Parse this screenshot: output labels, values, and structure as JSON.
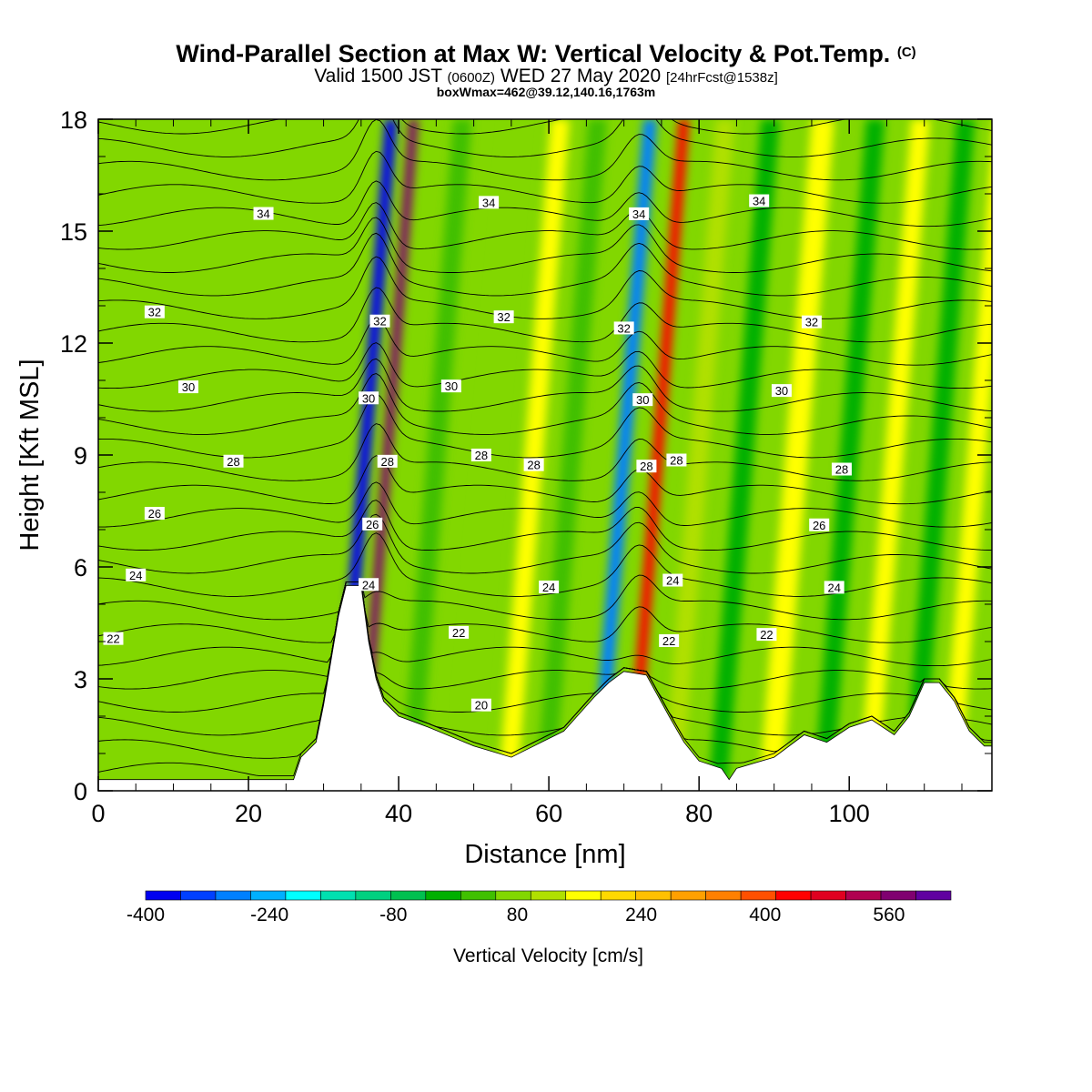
{
  "titles": {
    "main": "Wind-Parallel Section at Max W: Vertical Velocity & Pot.Temp.",
    "main_suffix": "(C)",
    "line2_a": "Valid 1500 JST",
    "line2_b": "(0600Z)",
    "line2_c": "WED 27 May 2020",
    "line2_d": "[24hrFcst@1538z]",
    "line3": "boxWmax=462@39.12,140.16,1763m"
  },
  "colors": {
    "background_field": "#82d700",
    "terrain": "#ffffff",
    "contour": "#000000",
    "colorbar": [
      "#0000f0",
      "#0040ff",
      "#0080ff",
      "#00b0ff",
      "#00ffff",
      "#00e0b0",
      "#00d080",
      "#00c050",
      "#00b000",
      "#40c000",
      "#82d700",
      "#b0e000",
      "#ffff00",
      "#ffd800",
      "#ffc000",
      "#ffa000",
      "#ff8000",
      "#ff5000",
      "#ff0000",
      "#e00020",
      "#b00050",
      "#800070",
      "#6000a0"
    ]
  },
  "chart_data": {
    "type": "heatmap",
    "title": "Wind-Parallel Section at Max W: Vertical Velocity & Pot.Temp.",
    "xlabel": "Distance [nm]",
    "ylabel": "Height [Kft MSL]",
    "xlim": [
      0,
      119
    ],
    "ylim": [
      0,
      18
    ],
    "x_ticks": [
      0,
      20,
      40,
      60,
      80,
      100
    ],
    "y_ticks": [
      0,
      3,
      6,
      9,
      12,
      15,
      18
    ],
    "colorbar": {
      "label": "Vertical Velocity [cm/s]",
      "tick_labels": [
        "-400",
        "-240",
        "-80",
        "80",
        "240",
        "400",
        "560"
      ],
      "range": [
        -400,
        640
      ],
      "step": 40
    },
    "vertical_velocity_bands": [
      {
        "x": 35.5,
        "w": 1.6,
        "value": -420
      },
      {
        "x": 38.5,
        "w": 1.2,
        "value": 440
      },
      {
        "x": 45,
        "w": 2.5,
        "value": -40
      },
      {
        "x": 52,
        "w": 2.5,
        "value": 20
      },
      {
        "x": 58,
        "w": 2.5,
        "value": 110
      },
      {
        "x": 63,
        "w": 2.5,
        "value": -40
      },
      {
        "x": 70,
        "w": 1.8,
        "value": -300
      },
      {
        "x": 74.5,
        "w": 1.4,
        "value": 320
      },
      {
        "x": 80,
        "w": 2.5,
        "value": 40
      },
      {
        "x": 86,
        "w": 2.5,
        "value": -60
      },
      {
        "x": 93,
        "w": 3,
        "value": 80
      },
      {
        "x": 100,
        "w": 2.5,
        "value": -80
      },
      {
        "x": 106,
        "w": 2.5,
        "value": 80
      },
      {
        "x": 112,
        "w": 2.5,
        "value": -60
      },
      {
        "x": 117,
        "w": 2.5,
        "value": 80
      }
    ],
    "terrain_kft": [
      [
        0,
        0.3
      ],
      [
        26,
        0.3
      ],
      [
        27,
        0.9
      ],
      [
        29,
        1.3
      ],
      [
        30,
        2.3
      ],
      [
        31,
        3.5
      ],
      [
        32,
        4.7
      ],
      [
        33,
        5.5
      ],
      [
        35,
        5.5
      ],
      [
        36,
        4.0
      ],
      [
        37,
        3.0
      ],
      [
        38,
        2.4
      ],
      [
        40,
        2.0
      ],
      [
        44,
        1.7
      ],
      [
        50,
        1.2
      ],
      [
        55,
        0.9
      ],
      [
        58,
        1.2
      ],
      [
        62,
        1.6
      ],
      [
        66,
        2.5
      ],
      [
        68,
        2.9
      ],
      [
        70,
        3.2
      ],
      [
        73,
        3.1
      ],
      [
        76,
        2.0
      ],
      [
        78,
        1.3
      ],
      [
        80,
        0.8
      ],
      [
        83,
        0.6
      ],
      [
        84,
        0.3
      ],
      [
        85,
        0.6
      ],
      [
        90,
        0.9
      ],
      [
        94,
        1.5
      ],
      [
        97,
        1.3
      ],
      [
        100,
        1.7
      ],
      [
        103,
        1.9
      ],
      [
        106,
        1.5
      ],
      [
        108,
        2.0
      ],
      [
        110,
        2.9
      ],
      [
        112,
        2.9
      ],
      [
        114,
        2.4
      ],
      [
        116,
        1.6
      ],
      [
        118,
        1.2
      ],
      [
        119,
        1.2
      ]
    ],
    "theta_contours": [
      {
        "value": 20,
        "base_kft": 2.1,
        "labels": [
          {
            "x": 51,
            "text": "20"
          }
        ]
      },
      {
        "value": 22,
        "base_kft": 4.0,
        "labels": [
          {
            "x": 2,
            "text": "22"
          },
          {
            "x": 48,
            "text": "22"
          },
          {
            "x": 76,
            "text": "22"
          },
          {
            "x": 89,
            "text": "22"
          }
        ]
      },
      {
        "value": 24,
        "base_kft": 5.6,
        "labels": [
          {
            "x": 5,
            "text": "24"
          },
          {
            "x": 36,
            "text": "24"
          },
          {
            "x": 60,
            "text": "24"
          },
          {
            "x": 76.5,
            "text": "24"
          },
          {
            "x": 98,
            "text": "24"
          }
        ]
      },
      {
        "value": 26,
        "base_kft": 7.2,
        "labels": [
          {
            "x": 7.5,
            "text": "26"
          },
          {
            "x": 36.5,
            "text": "26"
          },
          {
            "x": 96,
            "text": "26"
          }
        ]
      },
      {
        "value": 28,
        "base_kft": 8.8,
        "labels": [
          {
            "x": 18,
            "text": "28"
          },
          {
            "x": 38.5,
            "text": "28"
          },
          {
            "x": 51,
            "text": "28"
          },
          {
            "x": 58,
            "text": "28"
          },
          {
            "x": 73,
            "text": "28"
          },
          {
            "x": 77,
            "text": "28"
          },
          {
            "x": 99,
            "text": "28"
          }
        ]
      },
      {
        "value": 30,
        "base_kft": 10.6,
        "labels": [
          {
            "x": 12,
            "text": "30"
          },
          {
            "x": 36,
            "text": "30"
          },
          {
            "x": 47,
            "text": "30"
          },
          {
            "x": 72.5,
            "text": "30"
          },
          {
            "x": 91,
            "text": "30"
          }
        ]
      },
      {
        "value": 32,
        "base_kft": 12.6,
        "labels": [
          {
            "x": 7.5,
            "text": "32"
          },
          {
            "x": 37.5,
            "text": "32"
          },
          {
            "x": 54,
            "text": "32"
          },
          {
            "x": 70,
            "text": "32"
          },
          {
            "x": 95,
            "text": "32"
          }
        ]
      },
      {
        "value": 34,
        "base_kft": 15.6,
        "labels": [
          {
            "x": 22,
            "text": "34"
          },
          {
            "x": 52,
            "text": "34"
          },
          {
            "x": 72,
            "text": "34"
          },
          {
            "x": 88,
            "text": "34"
          }
        ]
      }
    ]
  }
}
